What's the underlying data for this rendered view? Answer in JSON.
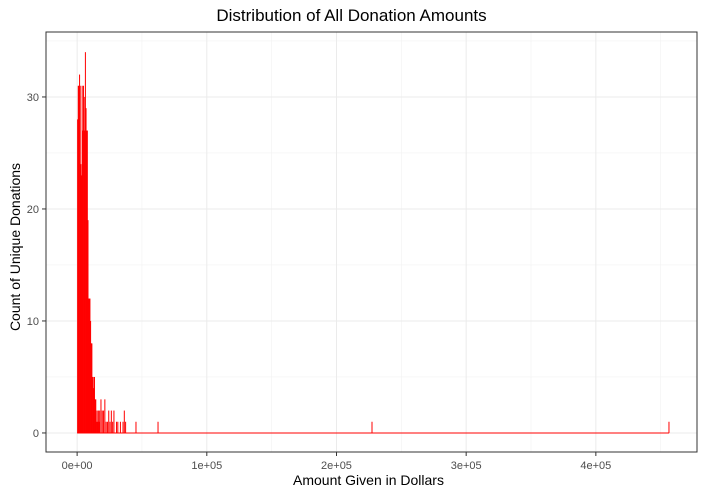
{
  "chart_data": {
    "type": "bar",
    "title": "Distribution of All Donation Amounts",
    "xlabel": "Amount Given in Dollars",
    "ylabel": "Count of Unique Donations",
    "xlim": [
      -24000,
      478000
    ],
    "ylim": [
      -1.7,
      35.8
    ],
    "x_ticks": [
      {
        "value": 0,
        "label": "0e+00"
      },
      {
        "value": 100000,
        "label": "1e+05"
      },
      {
        "value": 200000,
        "label": "2e+05"
      },
      {
        "value": 300000,
        "label": "3e+05"
      },
      {
        "value": 400000,
        "label": "4e+05"
      }
    ],
    "y_ticks": [
      {
        "value": 0,
        "label": "0"
      },
      {
        "value": 10,
        "label": "10"
      },
      {
        "value": 20,
        "label": "20"
      },
      {
        "value": 30,
        "label": "30"
      }
    ],
    "grid": true,
    "bar_color": "#ff0000",
    "bin_width": 500,
    "x": [
      0,
      500,
      1000,
      1500,
      2000,
      2500,
      3000,
      3500,
      4000,
      4500,
      5000,
      5500,
      6000,
      6500,
      7000,
      7500,
      8000,
      8500,
      9000,
      9500,
      10000,
      10500,
      11000,
      11500,
      12000,
      12500,
      13000,
      13500,
      14000,
      14500,
      15000,
      15500,
      16000,
      16500,
      17000,
      18000,
      19000,
      20000,
      21000,
      22000,
      23000,
      24000,
      25000,
      26000,
      27000,
      28000,
      30000,
      31000,
      33000,
      35000,
      36000,
      37000,
      45000,
      62000,
      227000,
      456000
    ],
    "values": [
      28,
      31,
      31,
      32,
      31,
      24,
      23,
      31,
      27,
      31,
      27,
      30,
      34,
      29,
      27,
      27,
      19,
      12,
      12,
      12,
      10,
      8,
      8,
      5,
      5,
      4,
      5,
      3,
      3,
      1,
      2,
      1,
      2,
      1,
      2,
      3,
      2,
      2,
      3,
      1,
      1,
      2,
      1,
      2,
      1,
      2,
      1,
      1,
      1,
      1,
      2,
      1,
      1,
      1,
      1,
      1
    ]
  }
}
